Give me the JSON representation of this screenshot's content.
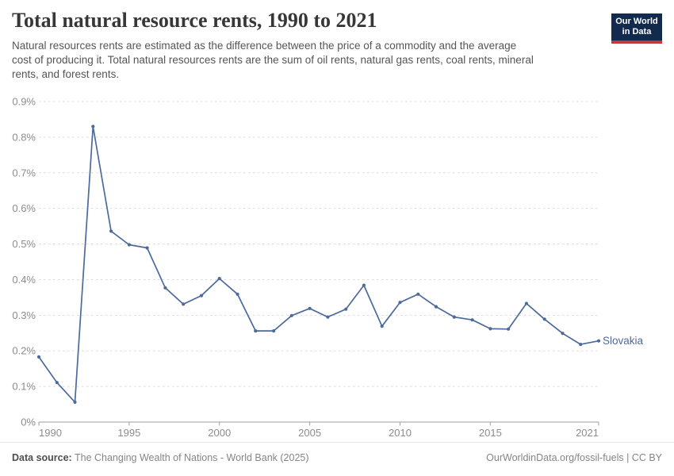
{
  "header": {
    "title": "Total natural resource rents, 1990 to 2021",
    "subtitle_lines": [
      "Natural resources rents are estimated as the difference between the price of a commodity and the average",
      "cost of producing it. Total natural resources rents are the sum of oil rents, natural gas rents, coal rents, mineral",
      "rents, and forest rents."
    ]
  },
  "logo": {
    "line1": "Our World",
    "line2": "in Data"
  },
  "footer": {
    "source_label": "Data source:",
    "source_value": " The Changing Wealth of Nations - World Bank (2025)",
    "rights": "OurWorldinData.org/fossil-fuels | CC BY"
  },
  "colors": {
    "accent": "#4C6A9C",
    "logo_navy": "#122A4D",
    "logo_red": "#BE3C3C",
    "gridline": "#dcdcdc",
    "axis": "#9e9e9e",
    "tick_label": "#8c8c8c"
  },
  "chart_data": {
    "type": "line",
    "title": "Total natural resource rents, 1990 to 2021",
    "xlabel": "",
    "ylabel": "",
    "unit": "%",
    "xlim": [
      1990,
      2021
    ],
    "ylim": [
      0,
      0.9
    ],
    "grid": "horizontal-dashed",
    "legend_position": "end-of-line-label",
    "x": [
      1990,
      1991,
      1992,
      1993,
      1994,
      1995,
      1996,
      1997,
      1998,
      1999,
      2000,
      2001,
      2002,
      2003,
      2004,
      2005,
      2006,
      2007,
      2008,
      2009,
      2010,
      2011,
      2012,
      2013,
      2014,
      2015,
      2016,
      2017,
      2018,
      2019,
      2020,
      2021
    ],
    "series": [
      {
        "name": "Slovakia",
        "color": "#4C6A9C",
        "values": [
          0.183,
          0.111,
          0.056,
          0.83,
          0.536,
          0.498,
          0.489,
          0.377,
          0.331,
          0.355,
          0.403,
          0.359,
          0.256,
          0.256,
          0.299,
          0.319,
          0.295,
          0.317,
          0.384,
          0.269,
          0.336,
          0.359,
          0.324,
          0.295,
          0.287,
          0.262,
          0.261,
          0.333,
          0.289,
          0.249,
          0.218,
          0.228
        ]
      }
    ],
    "y_ticks": [
      {
        "value": 0,
        "label": "0%"
      },
      {
        "value": 0.1,
        "label": "0.1%"
      },
      {
        "value": 0.2,
        "label": "0.2%"
      },
      {
        "value": 0.3,
        "label": "0.3%"
      },
      {
        "value": 0.4,
        "label": "0.4%"
      },
      {
        "value": 0.5,
        "label": "0.5%"
      },
      {
        "value": 0.6,
        "label": "0.6%"
      },
      {
        "value": 0.7,
        "label": "0.7%"
      },
      {
        "value": 0.8,
        "label": "0.8%"
      },
      {
        "value": 0.9,
        "label": "0.9%"
      }
    ],
    "x_ticks": [
      {
        "value": 1990,
        "label": "1990",
        "align": "start"
      },
      {
        "value": 1995,
        "label": "1995",
        "align": "middle"
      },
      {
        "value": 2000,
        "label": "2000",
        "align": "middle"
      },
      {
        "value": 2005,
        "label": "2005",
        "align": "middle"
      },
      {
        "value": 2010,
        "label": "2010",
        "align": "middle"
      },
      {
        "value": 2015,
        "label": "2015",
        "align": "middle"
      },
      {
        "value": 2021,
        "label": "2021",
        "align": "end"
      }
    ]
  }
}
